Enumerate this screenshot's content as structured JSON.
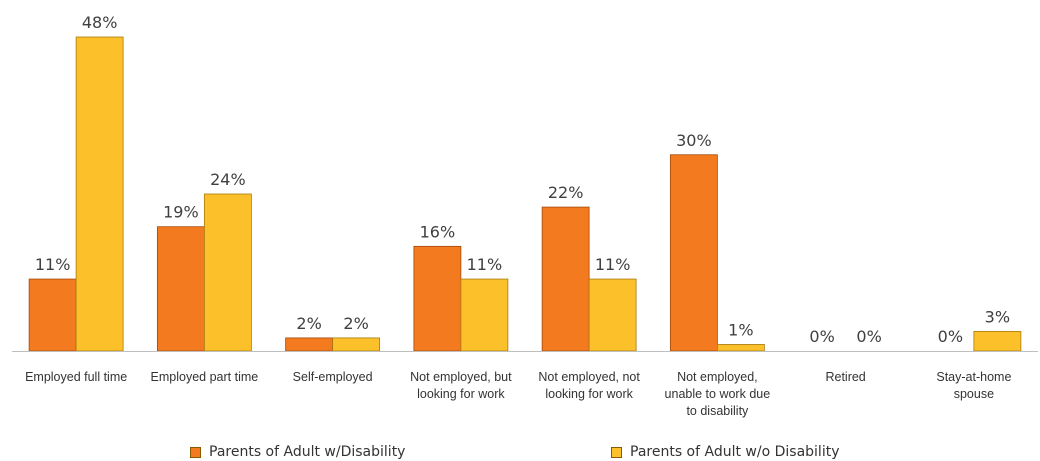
{
  "chart_data": {
    "type": "bar",
    "categories": [
      [
        "Employed full time"
      ],
      [
        "Employed part time"
      ],
      [
        "Self-employed"
      ],
      [
        "Not employed, but",
        "looking for work"
      ],
      [
        "Not employed, not",
        "looking for work"
      ],
      [
        "Not employed,",
        "unable to work due",
        "to disability"
      ],
      [
        "Retired"
      ],
      [
        "Stay-at-home",
        "spouse"
      ]
    ],
    "series": [
      {
        "name": "Parents of Adult w/Disability",
        "color": "#f47a1f",
        "values": [
          11,
          19,
          2,
          16,
          22,
          30,
          0,
          0
        ],
        "labels": [
          "11%",
          "19%",
          "2%",
          "16%",
          "22%",
          "30%",
          "0%",
          "0%"
        ]
      },
      {
        "name": "Parents of Adult w/o Disability",
        "color": "#fcc02a",
        "values": [
          48,
          24,
          2,
          11,
          11,
          1,
          0,
          3
        ],
        "labels": [
          "48%",
          "24%",
          "2%",
          "11%",
          "11%",
          "1%",
          "0%",
          "3%"
        ]
      }
    ],
    "ylim": [
      0,
      48
    ],
    "grid": false,
    "legend_position": "bottom"
  }
}
